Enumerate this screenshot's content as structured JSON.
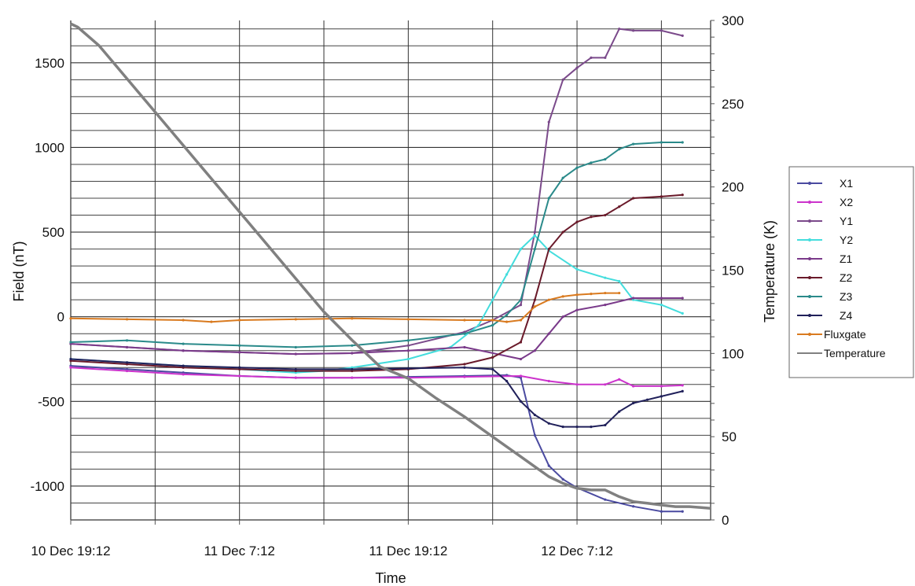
{
  "chart_data": {
    "type": "line",
    "xlabel": "Time",
    "ylabel": "Field (nT)",
    "y2label": "Temperature (K)",
    "x_tick_labels": [
      "10 Dec 19:12",
      "11 Dec 7:12",
      "11 Dec 19:12",
      "12 Dec 7:12"
    ],
    "x_tick_hours": [
      0,
      12,
      24,
      36
    ],
    "xlim_hours": [
      0,
      45.5
    ],
    "ylim": [
      -1200,
      1750
    ],
    "y_ticks": [
      -1000,
      -500,
      0,
      500,
      1000,
      1500
    ],
    "y2lim": [
      0,
      300
    ],
    "y2_ticks": [
      0,
      50,
      100,
      150,
      200,
      250,
      300
    ],
    "grid": true,
    "legend_position": "right",
    "series": [
      {
        "name": "X1",
        "axis": "left",
        "color": "#4a4aa0",
        "x": [
          0,
          4,
          8,
          12,
          16,
          20,
          24,
          28,
          31,
          32,
          33,
          34,
          35,
          36,
          38,
          40,
          42,
          43.5
        ],
        "y": [
          -290,
          -310,
          -330,
          -350,
          -360,
          -360,
          -355,
          -350,
          -345,
          -360,
          -700,
          -880,
          -960,
          -1010,
          -1080,
          -1120,
          -1150,
          -1150
        ]
      },
      {
        "name": "X2",
        "axis": "left",
        "color": "#cc33cc",
        "x": [
          0,
          4,
          8,
          12,
          16,
          20,
          24,
          28,
          32,
          34,
          36,
          38,
          39,
          40,
          42,
          43.5
        ],
        "y": [
          -300,
          -320,
          -340,
          -350,
          -360,
          -360,
          -360,
          -355,
          -350,
          -380,
          -400,
          -400,
          -370,
          -410,
          -410,
          -405
        ]
      },
      {
        "name": "Y1",
        "axis": "left",
        "color": "#7b4a8b",
        "x": [
          0,
          4,
          8,
          12,
          16,
          20,
          24,
          28,
          30,
          32,
          33,
          34,
          35,
          36,
          37,
          38,
          39,
          40,
          42,
          43.5
        ],
        "y": [
          -160,
          -180,
          -200,
          -210,
          -220,
          -215,
          -170,
          -90,
          -20,
          70,
          500,
          1150,
          1400,
          1470,
          1530,
          1530,
          1700,
          1690,
          1690,
          1660
        ]
      },
      {
        "name": "Y2",
        "axis": "left",
        "color": "#44dddd",
        "x": [
          0,
          4,
          8,
          12,
          14,
          16,
          18,
          20,
          24,
          27,
          29,
          30,
          31,
          32,
          33,
          34,
          36,
          38,
          39,
          40,
          42,
          43.5
        ],
        "y": [
          -250,
          -270,
          -290,
          -310,
          -320,
          -330,
          -320,
          -300,
          -250,
          -180,
          -50,
          100,
          250,
          400,
          480,
          390,
          280,
          230,
          210,
          100,
          70,
          20
        ]
      },
      {
        "name": "Z1",
        "axis": "left",
        "color": "#7a3a8a",
        "x": [
          0,
          4,
          8,
          12,
          16,
          20,
          24,
          28,
          32,
          33,
          34,
          35,
          36,
          38,
          40,
          42,
          43.5
        ],
        "y": [
          -160,
          -180,
          -200,
          -210,
          -220,
          -215,
          -200,
          -180,
          -250,
          -200,
          -100,
          0,
          40,
          70,
          110,
          110,
          110
        ]
      },
      {
        "name": "Z2",
        "axis": "left",
        "color": "#6a1a2a",
        "x": [
          0,
          4,
          8,
          12,
          16,
          20,
          24,
          28,
          30,
          32,
          33,
          34,
          35,
          36,
          37,
          38,
          39,
          40,
          42,
          43.5
        ],
        "y": [
          -260,
          -280,
          -300,
          -310,
          -320,
          -320,
          -310,
          -280,
          -240,
          -150,
          100,
          400,
          500,
          560,
          590,
          600,
          650,
          700,
          710,
          720
        ]
      },
      {
        "name": "Z3",
        "axis": "left",
        "color": "#2a8a8a",
        "x": [
          0,
          4,
          8,
          12,
          16,
          20,
          24,
          28,
          30,
          31,
          32,
          33,
          34,
          35,
          36,
          37,
          38,
          39,
          40,
          42,
          43.5
        ],
        "y": [
          -150,
          -140,
          -160,
          -170,
          -180,
          -170,
          -140,
          -100,
          -50,
          10,
          100,
          400,
          700,
          820,
          880,
          910,
          930,
          990,
          1020,
          1030,
          1030
        ]
      },
      {
        "name": "Z4",
        "axis": "left",
        "color": "#20205a",
        "x": [
          0,
          4,
          8,
          12,
          16,
          20,
          24,
          28,
          30,
          31,
          32,
          33,
          34,
          35,
          36,
          37,
          38,
          39,
          40,
          41,
          42,
          43.5
        ],
        "y": [
          -250,
          -270,
          -290,
          -300,
          -310,
          -310,
          -305,
          -300,
          -310,
          -380,
          -500,
          -580,
          -630,
          -650,
          -650,
          -650,
          -640,
          -560,
          -510,
          -490,
          -470,
          -440
        ]
      },
      {
        "name": "Fluxgate",
        "axis": "left",
        "color": "#d97a1f",
        "x": [
          0,
          4,
          8,
          10,
          12,
          16,
          20,
          24,
          28,
          30,
          31,
          32,
          33,
          34,
          35,
          36,
          37,
          38,
          39
        ],
        "y": [
          -10,
          -15,
          -20,
          -30,
          -20,
          -15,
          -10,
          -15,
          -20,
          -20,
          -30,
          -20,
          60,
          100,
          120,
          130,
          135,
          140,
          140
        ]
      },
      {
        "name": "Temperature",
        "axis": "right",
        "color": "#808080",
        "x": [
          0,
          0.5,
          2,
          4,
          6,
          8,
          10,
          12,
          14,
          16,
          18,
          20,
          22,
          24,
          26,
          28,
          30,
          32,
          33,
          34,
          35,
          36,
          37,
          38,
          39,
          40,
          41,
          42,
          43,
          44,
          45.5
        ],
        "y": [
          298,
          296,
          285,
          265,
          245,
          225,
          205,
          185,
          165,
          145,
          125,
          108,
          92,
          85,
          73,
          62,
          50,
          38,
          32,
          26,
          22,
          19,
          18,
          18,
          14,
          11,
          10,
          9,
          8,
          8,
          7
        ]
      }
    ]
  }
}
